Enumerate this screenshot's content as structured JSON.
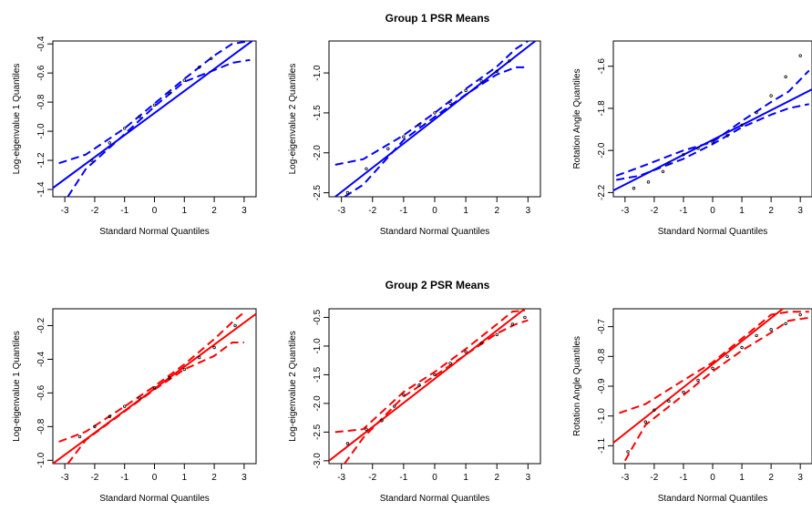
{
  "figure": {
    "group_titles": [
      "Group 1 PSR Means",
      "Group 2 PSR Means"
    ]
  },
  "chart_data": [
    {
      "type": "scatter",
      "group": 1,
      "color": "#0000ff",
      "title": "",
      "xlabel": "Standard Normal Quantiles",
      "ylabel": "Log-eigenvalue 1  Quantiles",
      "xlim": [
        -3.4,
        3.4
      ],
      "ylim": [
        -1.45,
        -0.38
      ],
      "xticks": [
        "-3",
        "-2",
        "-1",
        "0",
        "1",
        "2",
        "3"
      ],
      "yticks": [
        "-1.4",
        "-1.2",
        "-1.0",
        "-0.8",
        "-0.6",
        "-0.4"
      ],
      "points": [
        [
          -2.1,
          -1.2
        ],
        [
          -1.5,
          -1.08
        ],
        [
          -1,
          -0.98
        ],
        [
          -0.5,
          -0.9
        ],
        [
          0,
          -0.82
        ],
        [
          0.5,
          -0.74
        ],
        [
          1,
          -0.65
        ],
        [
          1.5,
          -0.56
        ],
        [
          1.9,
          -0.5
        ]
      ],
      "reference_line": [
        [
          -3.4,
          -1.39
        ],
        [
          3.4,
          -0.36
        ]
      ],
      "envelope_upper": [
        [
          -3.2,
          -1.22
        ],
        [
          -2.3,
          -1.16
        ],
        [
          -1,
          -0.98
        ],
        [
          0,
          -0.81
        ],
        [
          1,
          -0.64
        ],
        [
          2,
          -0.48
        ],
        [
          2.6,
          -0.4
        ],
        [
          3.2,
          -0.38
        ]
      ],
      "envelope_lower": [
        [
          -2.9,
          -1.45
        ],
        [
          -2.3,
          -1.26
        ],
        [
          -1,
          -1.02
        ],
        [
          0,
          -0.83
        ],
        [
          1,
          -0.66
        ],
        [
          2,
          -0.58
        ],
        [
          2.6,
          -0.53
        ],
        [
          3.2,
          -0.51
        ]
      ]
    },
    {
      "type": "scatter",
      "group": 1,
      "color": "#0000ff",
      "title": "",
      "xlabel": "Standard Normal Quantiles",
      "ylabel": "Log-eigenvalue 2  Quantiles",
      "xlim": [
        -3.4,
        3.4
      ],
      "ylim": [
        -2.55,
        -0.6
      ],
      "xticks": [
        "-3",
        "-2",
        "-1",
        "0",
        "1",
        "2",
        "3"
      ],
      "yticks": [
        "-2.5",
        "-2.0",
        "-1.5",
        "-1.0"
      ],
      "points": [
        [
          -2.8,
          -2.5
        ],
        [
          -2.2,
          -2.2
        ],
        [
          -1.5,
          -1.95
        ],
        [
          -1,
          -1.8
        ],
        [
          -0.5,
          -1.65
        ],
        [
          0,
          -1.5
        ],
        [
          0.5,
          -1.38
        ],
        [
          1,
          -1.22
        ],
        [
          1.5,
          -1.1
        ],
        [
          2,
          -0.98
        ],
        [
          2.4,
          -0.85
        ]
      ],
      "reference_line": [
        [
          -3.2,
          -2.55
        ],
        [
          3.4,
          -0.55
        ]
      ],
      "envelope_upper": [
        [
          -3.2,
          -2.15
        ],
        [
          -2.3,
          -2.08
        ],
        [
          -1,
          -1.78
        ],
        [
          0,
          -1.5
        ],
        [
          1,
          -1.2
        ],
        [
          2,
          -0.92
        ],
        [
          2.6,
          -0.7
        ],
        [
          3,
          -0.6
        ]
      ],
      "envelope_lower": [
        [
          -2.9,
          -2.55
        ],
        [
          -2.3,
          -2.4
        ],
        [
          -1,
          -1.84
        ],
        [
          0,
          -1.55
        ],
        [
          1,
          -1.27
        ],
        [
          2,
          -1.02
        ],
        [
          2.6,
          -0.93
        ],
        [
          3,
          -0.93
        ]
      ]
    },
    {
      "type": "scatter",
      "group": 1,
      "color": "#0000ff",
      "title": "",
      "xlabel": "Standard Normal Quantiles",
      "ylabel": "Rotation Angle Quantiles",
      "xlim": [
        -3.4,
        3.4
      ],
      "ylim": [
        -2.22,
        -1.48
      ],
      "xticks": [
        "-3",
        "-2",
        "-1",
        "0",
        "1",
        "2",
        "3"
      ],
      "yticks": [
        "-2.2",
        "-2.0",
        "-1.8",
        "-1.6"
      ],
      "points": [
        [
          -2.7,
          -2.18
        ],
        [
          -2.2,
          -2.15
        ],
        [
          -1.7,
          -2.1
        ],
        [
          -1.5,
          -2.06
        ],
        [
          -1,
          -2.02
        ],
        [
          -0.5,
          -1.99
        ],
        [
          0,
          -1.96
        ],
        [
          0.5,
          -1.93
        ],
        [
          1,
          -1.88
        ],
        [
          1.5,
          -1.82
        ],
        [
          2,
          -1.74
        ],
        [
          2.5,
          -1.65
        ],
        [
          3,
          -1.55
        ]
      ],
      "reference_line": [
        [
          -3.4,
          -2.19
        ],
        [
          3.4,
          -1.71
        ]
      ],
      "envelope_upper": [
        [
          -3.3,
          -2.12
        ],
        [
          -2.5,
          -2.08
        ],
        [
          -1,
          -2.0
        ],
        [
          0,
          -1.96
        ],
        [
          1,
          -1.86
        ],
        [
          2,
          -1.77
        ],
        [
          2.6,
          -1.72
        ],
        [
          3.3,
          -1.62
        ]
      ],
      "envelope_lower": [
        [
          -3.3,
          -2.14
        ],
        [
          -2.5,
          -2.12
        ],
        [
          -1,
          -2.04
        ],
        [
          0,
          -1.97
        ],
        [
          1,
          -1.89
        ],
        [
          2,
          -1.83
        ],
        [
          2.6,
          -1.8
        ],
        [
          3.3,
          -1.78
        ]
      ]
    },
    {
      "type": "scatter",
      "group": 2,
      "color": "#ff0000",
      "title": "",
      "xlabel": "Standard Normal Quantiles",
      "ylabel": "Log-eigenvalue 1  Quantiles",
      "xlim": [
        -3.4,
        3.4
      ],
      "ylim": [
        -1.02,
        -0.1
      ],
      "xticks": [
        "-3",
        "-2",
        "-1",
        "0",
        "1",
        "2",
        "3"
      ],
      "yticks": [
        "-1.0",
        "-0.8",
        "-0.6",
        "-0.4",
        "-0.2"
      ],
      "points": [
        [
          -2.5,
          -0.86
        ],
        [
          -2,
          -0.8
        ],
        [
          -1.5,
          -0.74
        ],
        [
          -1,
          -0.68
        ],
        [
          -0.5,
          -0.63
        ],
        [
          0,
          -0.57
        ],
        [
          0.5,
          -0.51
        ],
        [
          1,
          -0.46
        ],
        [
          1.5,
          -0.39
        ],
        [
          2,
          -0.33
        ],
        [
          2.7,
          -0.2
        ]
      ],
      "reference_line": [
        [
          -3.4,
          -1.02
        ],
        [
          3.4,
          -0.13
        ]
      ],
      "envelope_upper": [
        [
          -3.2,
          -0.89
        ],
        [
          -2.3,
          -0.83
        ],
        [
          -1,
          -0.68
        ],
        [
          0,
          -0.56
        ],
        [
          1,
          -0.43
        ],
        [
          2,
          -0.28
        ],
        [
          2.6,
          -0.18
        ],
        [
          3,
          -0.12
        ]
      ],
      "envelope_lower": [
        [
          -2.9,
          -1.02
        ],
        [
          -2.3,
          -0.88
        ],
        [
          -1,
          -0.71
        ],
        [
          0,
          -0.58
        ],
        [
          1,
          -0.46
        ],
        [
          2,
          -0.38
        ],
        [
          2.6,
          -0.3
        ],
        [
          3,
          -0.3
        ]
      ]
    },
    {
      "type": "scatter",
      "group": 2,
      "color": "#ff0000",
      "title": "",
      "xlabel": "Standard Normal Quantiles",
      "ylabel": "Log-eigenvalue 2  Quantiles",
      "xlim": [
        -3.4,
        3.4
      ],
      "ylim": [
        -3.05,
        -0.35
      ],
      "xticks": [
        "-3",
        "-2",
        "-1",
        "0",
        "1",
        "2",
        "3"
      ],
      "yticks": [
        "-3.0",
        "-2.5",
        "-2.0",
        "-1.5",
        "-1.0",
        "-0.5"
      ],
      "points": [
        [
          -2.8,
          -2.7
        ],
        [
          -2.2,
          -2.45
        ],
        [
          -1.7,
          -2.3
        ],
        [
          -1.3,
          -2.05
        ],
        [
          -1,
          -1.85
        ],
        [
          -0.5,
          -1.68
        ],
        [
          0,
          -1.5
        ],
        [
          0.5,
          -1.3
        ],
        [
          1,
          -1.1
        ],
        [
          1.5,
          -0.95
        ],
        [
          2,
          -0.8
        ],
        [
          2.5,
          -0.62
        ],
        [
          2.9,
          -0.5
        ]
      ],
      "reference_line": [
        [
          -3.4,
          -3.0
        ],
        [
          2.9,
          -0.35
        ]
      ],
      "envelope_upper": [
        [
          -3.2,
          -2.5
        ],
        [
          -2.3,
          -2.45
        ],
        [
          -1,
          -1.8
        ],
        [
          0,
          -1.45
        ],
        [
          1,
          -1.05
        ],
        [
          2,
          -0.62
        ],
        [
          2.5,
          -0.4
        ],
        [
          2.9,
          -0.38
        ]
      ],
      "envelope_lower": [
        [
          -2.9,
          -3.05
        ],
        [
          -2.3,
          -2.6
        ],
        [
          -1,
          -1.88
        ],
        [
          0,
          -1.52
        ],
        [
          1,
          -1.15
        ],
        [
          2,
          -0.78
        ],
        [
          2.6,
          -0.62
        ],
        [
          3,
          -0.55
        ]
      ]
    },
    {
      "type": "scatter",
      "group": 2,
      "color": "#ff0000",
      "title": "",
      "xlabel": "Standard Normal Quantiles",
      "ylabel": "Rotation Angle Quantiles",
      "xlim": [
        -3.4,
        3.4
      ],
      "ylim": [
        -1.16,
        -0.64
      ],
      "xticks": [
        "-3",
        "-2",
        "-1",
        "0",
        "1",
        "2",
        "3"
      ],
      "yticks": [
        "-1.1",
        "-1.0",
        "-0.9",
        "-0.8",
        "-0.7"
      ],
      "points": [
        [
          -2.9,
          -1.12
        ],
        [
          -2.3,
          -1.02
        ],
        [
          -2,
          -0.98
        ],
        [
          -1.5,
          -0.95
        ],
        [
          -1,
          -0.92
        ],
        [
          -0.5,
          -0.88
        ],
        [
          0,
          -0.84
        ],
        [
          0.5,
          -0.8
        ],
        [
          1,
          -0.77
        ],
        [
          1.5,
          -0.73
        ],
        [
          2,
          -0.71
        ],
        [
          2.5,
          -0.69
        ],
        [
          3,
          -0.66
        ]
      ],
      "reference_line": [
        [
          -3.4,
          -1.09
        ],
        [
          2.4,
          -0.64
        ]
      ],
      "envelope_upper": [
        [
          -3.2,
          -0.99
        ],
        [
          -2.3,
          -0.96
        ],
        [
          -1,
          -0.88
        ],
        [
          0,
          -0.82
        ],
        [
          1,
          -0.74
        ],
        [
          2,
          -0.66
        ],
        [
          2.6,
          -0.65
        ],
        [
          3.3,
          -0.65
        ]
      ],
      "envelope_lower": [
        [
          -3,
          -1.15
        ],
        [
          -2.3,
          -1.03
        ],
        [
          -1,
          -0.93
        ],
        [
          0,
          -0.85
        ],
        [
          1,
          -0.78
        ],
        [
          2,
          -0.72
        ],
        [
          2.6,
          -0.68
        ],
        [
          3.3,
          -0.67
        ]
      ]
    }
  ]
}
